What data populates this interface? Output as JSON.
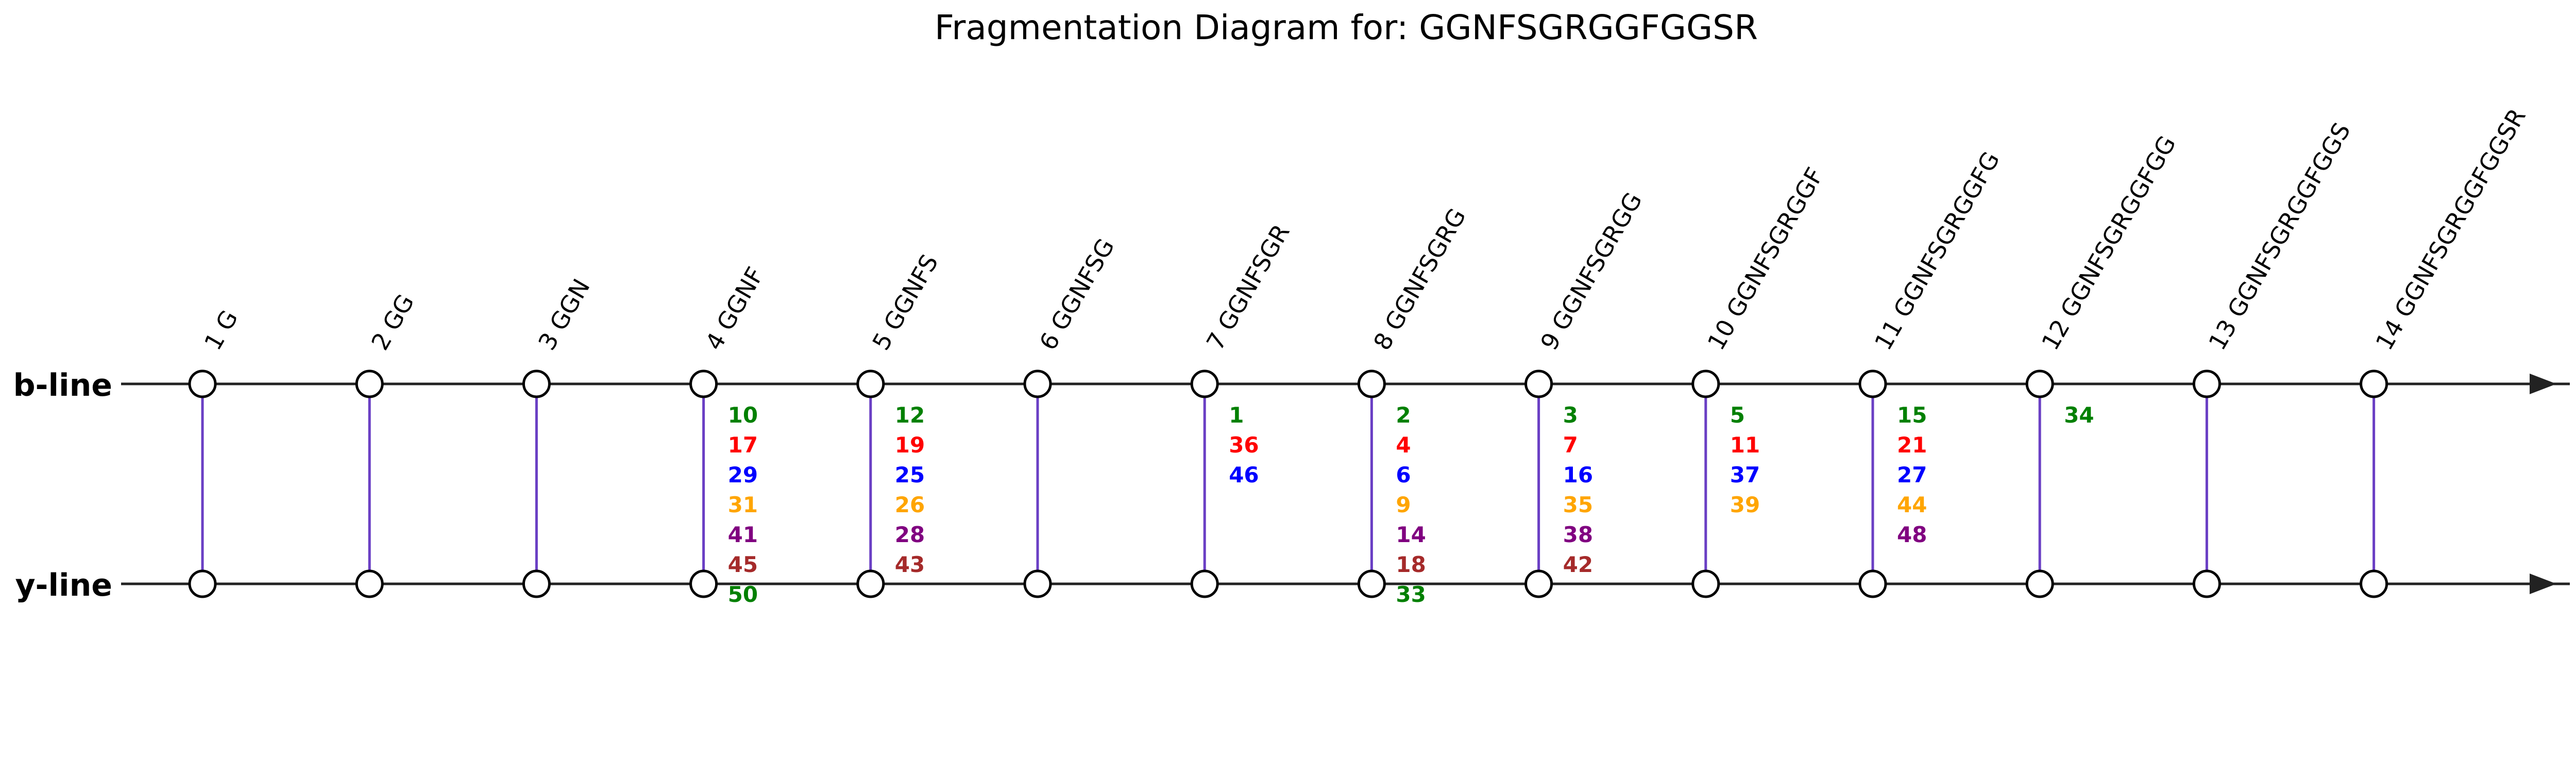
{
  "title": "Fragmentation Diagram for: GGNFSGRGGFGGSR",
  "lines": {
    "b": "b-line",
    "y": "y-line"
  },
  "colors": {
    "axis": "#222222",
    "connector": "#6a3fc4",
    "node_fill": "#ffffff",
    "node_stroke": "#000000",
    "ion_palette": [
      "#008000",
      "#ff0000",
      "#0000ff",
      "#ffa500",
      "#800080",
      "#a52a2a",
      "#008000"
    ]
  },
  "positions": [
    {
      "label": "1 G",
      "ions": []
    },
    {
      "label": "2 GG",
      "ions": []
    },
    {
      "label": "3 GGN",
      "ions": []
    },
    {
      "label": "4 GGNF",
      "ions": [
        "10",
        "17",
        "29",
        "31",
        "41",
        "45",
        "50"
      ]
    },
    {
      "label": "5 GGNFS",
      "ions": [
        "12",
        "19",
        "25",
        "26",
        "28",
        "43"
      ]
    },
    {
      "label": "6 GGNFSG",
      "ions": []
    },
    {
      "label": "7 GGNFSGR",
      "ions": [
        "1",
        "36",
        "46"
      ]
    },
    {
      "label": "8 GGNFSGRG",
      "ions": [
        "2",
        "4",
        "6",
        "9",
        "14",
        "18",
        "33"
      ]
    },
    {
      "label": "9 GGNFSGRGG",
      "ions": [
        "3",
        "7",
        "16",
        "35",
        "38",
        "42"
      ]
    },
    {
      "label": "10 GGNFSGRGGF",
      "ions": [
        "5",
        "11",
        "37",
        "39"
      ]
    },
    {
      "label": "11 GGNFSGRGGFG",
      "ions": [
        "15",
        "21",
        "27",
        "44",
        "48"
      ]
    },
    {
      "label": "12 GGNFSGRGGFGG",
      "ions": [
        "34"
      ]
    },
    {
      "label": "13 GGNFSGRGGFGGS",
      "ions": []
    },
    {
      "label": "14 GGNFSGRGGFGGSR",
      "ions": []
    }
  ]
}
